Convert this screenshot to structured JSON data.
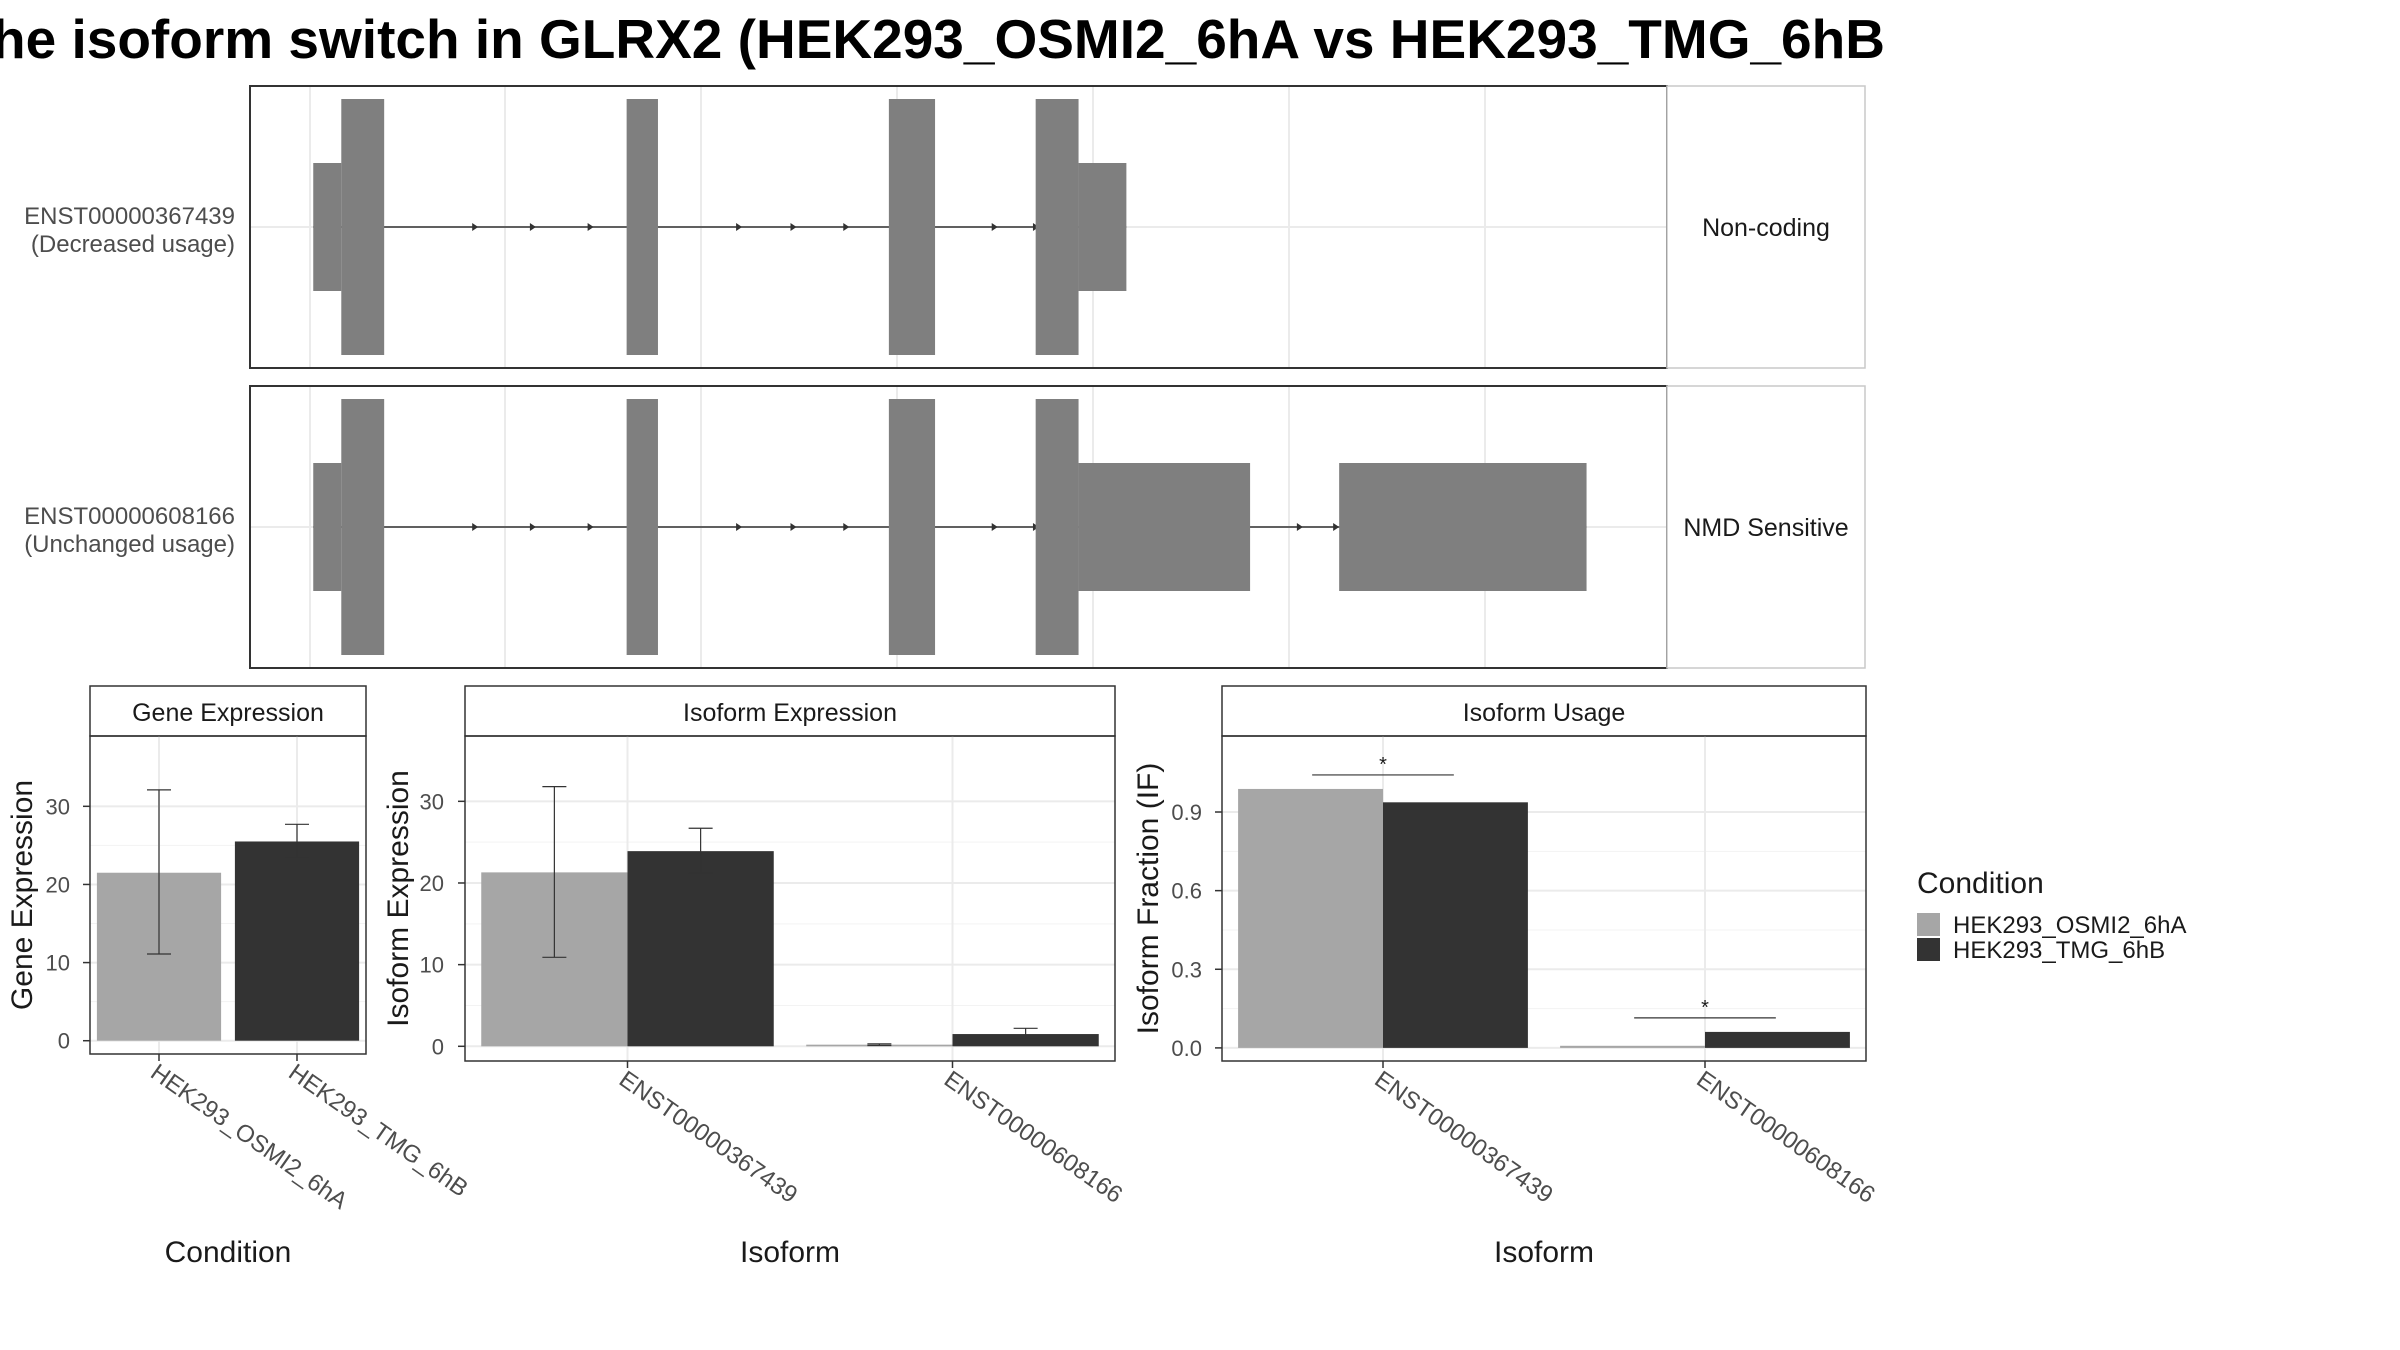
{
  "title": "he isoform switch in GLRX2 (HEK293_OSMI2_6hA vs HEK293_TMG_6hB",
  "transcripts": [
    {
      "id": "ENST00000367439",
      "usage": "(Decreased usage)",
      "type_label": "Non-coding",
      "exons": [
        {
          "start": 0.05,
          "end": 0.22,
          "level": "utr"
        },
        {
          "start": 0.22,
          "end": 0.48,
          "level": "cds"
        },
        {
          "start": 1.95,
          "end": 2.14,
          "level": "cds"
        },
        {
          "start": 3.54,
          "end": 3.82,
          "level": "cds"
        },
        {
          "start": 4.43,
          "end": 4.69,
          "level": "cds"
        },
        {
          "start": 4.69,
          "end": 4.98,
          "level": "utr"
        }
      ],
      "arrows": [
        1.05,
        1.4,
        1.75,
        2.65,
        2.98,
        3.3,
        4.2,
        4.45
      ]
    },
    {
      "id": "ENST00000608166",
      "usage": "(Unchanged usage)",
      "type_label": "NMD Sensitive",
      "exons": [
        {
          "start": 0.05,
          "end": 0.22,
          "level": "utr"
        },
        {
          "start": 0.22,
          "end": 0.48,
          "level": "cds"
        },
        {
          "start": 1.95,
          "end": 2.14,
          "level": "cds"
        },
        {
          "start": 3.54,
          "end": 3.82,
          "level": "cds"
        },
        {
          "start": 4.43,
          "end": 4.69,
          "level": "cds"
        },
        {
          "start": 4.69,
          "end": 5.73,
          "level": "utr"
        },
        {
          "start": 6.27,
          "end": 7.77,
          "level": "utr"
        }
      ],
      "arrows": [
        1.05,
        1.4,
        1.75,
        2.65,
        2.98,
        3.3,
        4.2,
        4.45,
        6.05,
        6.27
      ]
    }
  ],
  "chart_data": [
    {
      "type": "bar",
      "title": "Gene Expression",
      "xlabel": "Condition",
      "ylabel": "Gene Expression",
      "categories": [
        "HEK293_OSMI2_6hA",
        "HEK293_TMG_6hB"
      ],
      "values": [
        21.5,
        25.5
      ],
      "error_low": [
        11.1,
        23.4
      ],
      "error_high": [
        32.1,
        27.7
      ],
      "ylim": [
        -1.7,
        39
      ],
      "yticks": [
        0,
        10,
        20,
        30
      ],
      "colors": [
        "#a6a6a6",
        "#333333"
      ]
    },
    {
      "type": "bar",
      "title": "Isoform Expression",
      "xlabel": "Isoform",
      "ylabel": "Isoform Expression",
      "categories": [
        "ENST00000367439",
        "ENST00000608166"
      ],
      "series": [
        {
          "name": "HEK293_OSMI2_6hA",
          "values": [
            21.3,
            0.2
          ],
          "error_low": [
            10.9,
            0.1
          ],
          "error_high": [
            31.8,
            0.3
          ]
        },
        {
          "name": "HEK293_TMG_6hB",
          "values": [
            23.9,
            1.5
          ],
          "error_low": [
            21.2,
            0.9
          ],
          "error_high": [
            26.7,
            2.2
          ]
        }
      ],
      "ylim": [
        -1.8,
        38
      ],
      "yticks": [
        0,
        10,
        20,
        30
      ],
      "colors": [
        "#a6a6a6",
        "#333333"
      ]
    },
    {
      "type": "bar",
      "title": "Isoform Usage",
      "xlabel": "Isoform",
      "ylabel": "Isoform Fraction (IF)",
      "categories": [
        "ENST00000367439",
        "ENST00000608166"
      ],
      "series": [
        {
          "name": "HEK293_OSMI2_6hA",
          "values": [
            0.988,
            0.008
          ]
        },
        {
          "name": "HEK293_TMG_6hB",
          "values": [
            0.937,
            0.061
          ]
        }
      ],
      "ylim": [
        -0.05,
        1.19
      ],
      "yticks": [
        "0.0",
        "0.3",
        "0.6",
        "0.9"
      ],
      "significance": [
        "*",
        "*"
      ],
      "colors": [
        "#a6a6a6",
        "#333333"
      ]
    }
  ],
  "legend": {
    "title": "Condition",
    "items": [
      {
        "label": "HEK293_OSMI2_6hA",
        "color": "#a6a6a6"
      },
      {
        "label": "HEK293_TMG_6hB",
        "color": "#333333"
      }
    ]
  }
}
